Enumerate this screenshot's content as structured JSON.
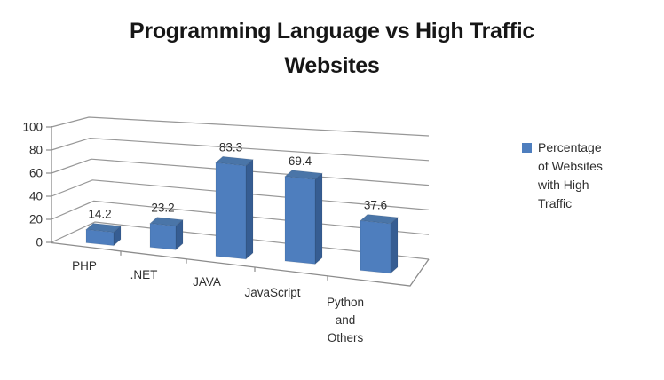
{
  "title": {
    "lines": [
      "Programming Language vs High Traffic",
      "Websites"
    ]
  },
  "legend": {
    "label": "Percentage of Websites with High Traffic",
    "lines": [
      "Percentage",
      "of Websites",
      "with High",
      "Traffic"
    ]
  },
  "y_axis": {
    "ticks": [
      0,
      20,
      40,
      60,
      80,
      100
    ],
    "min": 0,
    "max": 100
  },
  "chart_data": {
    "type": "bar",
    "subtype": "3d-clustered-column",
    "title": "Programming Language vs High Traffic Websites",
    "categories": [
      "PHP",
      ".NET",
      "JAVA",
      "JavaScript",
      "Python and Others"
    ],
    "category_label_lines": [
      [
        "PHP"
      ],
      [
        ".NET"
      ],
      [
        "JAVA"
      ],
      [
        "JavaScript"
      ],
      [
        "Python",
        "and",
        "Others"
      ]
    ],
    "series": [
      {
        "name": "Percentage of Websites with High Traffic",
        "values": [
          14.2,
          23.2,
          83.3,
          69.4,
          37.6
        ]
      }
    ],
    "values": [
      14.2,
      23.2,
      83.3,
      69.4,
      37.6
    ],
    "data_labels": [
      "14.2",
      "23.2",
      "83.3",
      "69.4",
      "37.6"
    ],
    "xlabel": "",
    "ylabel": "",
    "ylim": [
      0,
      100
    ],
    "grid": true,
    "legend_position": "right"
  },
  "colors": {
    "bar_front": "#4e7ebe",
    "bar_top": "#4a75a8",
    "bar_side": "#365d92",
    "grid": "#979797",
    "axis": "#8c8c8c",
    "axis_text": "#2e2e2e",
    "label_text": "#1f1f1f",
    "background": "#ffffff"
  }
}
